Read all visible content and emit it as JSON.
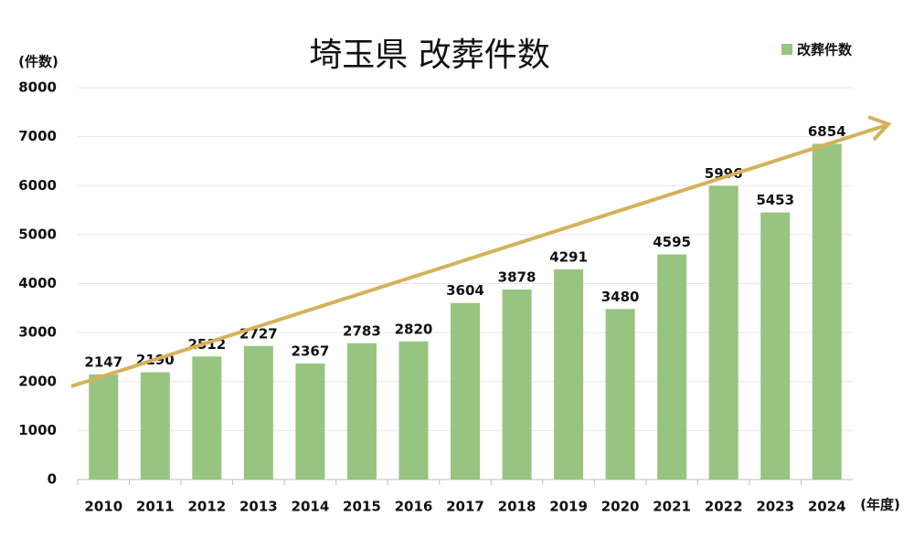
{
  "chart_data": {
    "type": "bar",
    "title": "埼玉県 改葬件数",
    "y_label": "(件数)",
    "x_label": "(年度)",
    "categories": [
      "2010",
      "2011",
      "2012",
      "2013",
      "2014",
      "2015",
      "2016",
      "2017",
      "2018",
      "2019",
      "2020",
      "2021",
      "2022",
      "2023",
      "2024"
    ],
    "series": [
      {
        "name": "改葬件数",
        "color": "#97c480",
        "values": [
          2147,
          2190,
          2512,
          2727,
          2367,
          2783,
          2820,
          3604,
          3878,
          4291,
          3480,
          4595,
          5996,
          5453,
          6854
        ]
      }
    ],
    "ylim": [
      0,
      8000
    ],
    "yticks": [
      0,
      1000,
      2000,
      3000,
      4000,
      5000,
      6000,
      7000,
      8000
    ],
    "grid": true,
    "legend": "top-right"
  }
}
